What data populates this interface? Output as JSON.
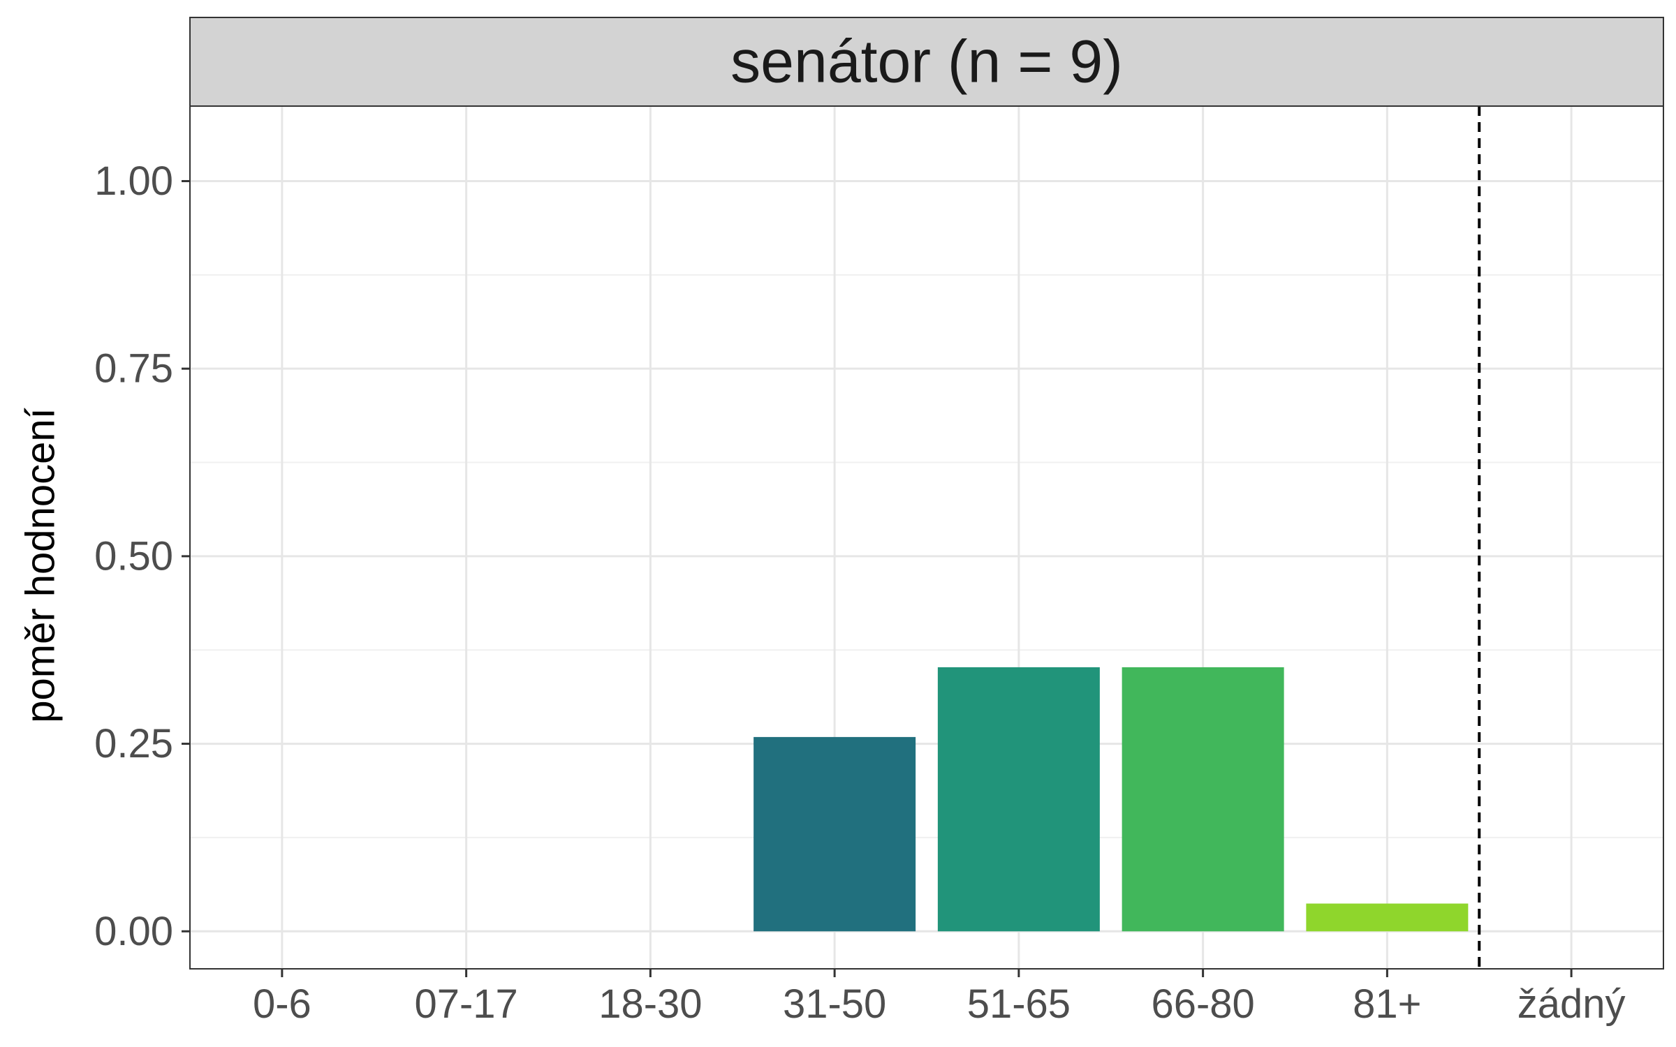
{
  "chart_data": {
    "type": "bar",
    "title": "senátor (n = 9)",
    "xlabel": "",
    "ylabel": "poměr hodnocení",
    "categories": [
      "0-6",
      "07-17",
      "18-30",
      "31-50",
      "51-65",
      "66-80",
      "81+",
      "žádný"
    ],
    "values": [
      0,
      0,
      0,
      0.259,
      0.352,
      0.352,
      0.037,
      0
    ],
    "colors": [
      "#440154",
      "#46337E",
      "#365C8D",
      "#21707E",
      "#21947A",
      "#41B75B",
      "#8FD62C",
      "#FDE725"
    ],
    "ylim": [
      -0.05,
      1.1
    ],
    "yticks": [
      0,
      0.25,
      0.5,
      0.75,
      1.0
    ],
    "ytick_labels": [
      "0.00",
      "0.25",
      "0.50",
      "0.75",
      "1.00"
    ],
    "reference_line": {
      "after_category": "81+",
      "style": "dashed",
      "color": "#000000"
    },
    "grid": true,
    "legend": "none"
  }
}
